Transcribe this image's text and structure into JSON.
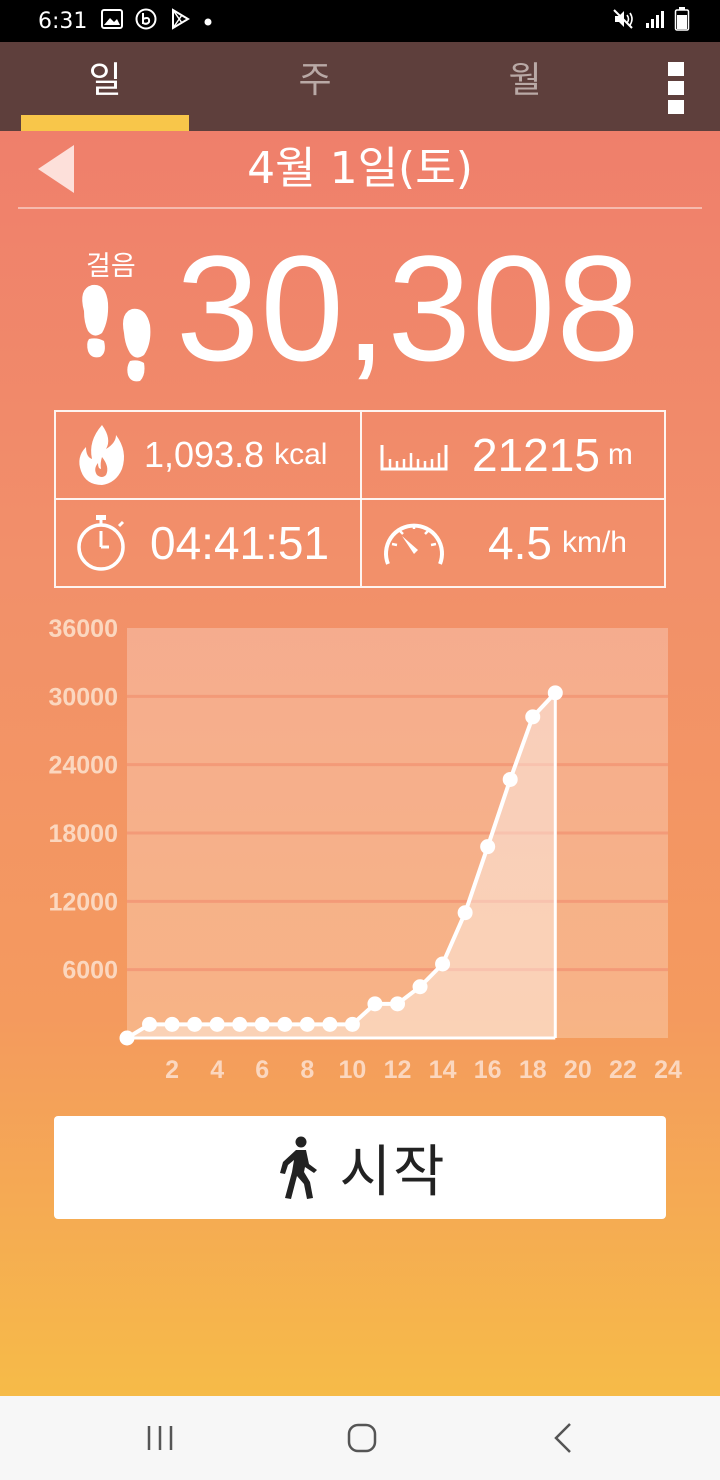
{
  "status_bar": {
    "time": "6:31",
    "icons": [
      "gallery-icon",
      "b-app-icon",
      "play-icon",
      "dot-icon",
      "mute-icon",
      "signal-icon",
      "battery-icon"
    ]
  },
  "tabs": [
    {
      "label": "일",
      "active": true
    },
    {
      "label": "주",
      "active": false
    },
    {
      "label": "월",
      "active": false
    }
  ],
  "date": {
    "title": "4월 1일(토)"
  },
  "steps": {
    "label": "걸음",
    "value": "30,308"
  },
  "stats": {
    "calories": {
      "value": "1,093.8",
      "unit": "kcal"
    },
    "distance": {
      "value": "21215",
      "unit": "m"
    },
    "duration": {
      "value": "04:41:51"
    },
    "speed": {
      "value": "4.5",
      "unit": "km/h"
    }
  },
  "chart_data": {
    "type": "line",
    "x": [
      0,
      1,
      2,
      3,
      4,
      5,
      6,
      7,
      8,
      9,
      10,
      11,
      12,
      13,
      14,
      15,
      16,
      17,
      18,
      19
    ],
    "values": [
      0,
      1200,
      1200,
      1200,
      1200,
      1200,
      1200,
      1200,
      1200,
      1200,
      1200,
      3000,
      3000,
      4500,
      6500,
      11000,
      16800,
      22700,
      28200,
      30308
    ],
    "xticks": [
      2,
      4,
      6,
      8,
      10,
      12,
      14,
      16,
      18,
      20,
      22,
      24
    ],
    "yticks": [
      6000,
      12000,
      18000,
      24000,
      30000,
      36000
    ],
    "xlim": [
      0,
      24
    ],
    "ylim": [
      0,
      36000
    ],
    "grid": true
  },
  "start_button": {
    "label": "시작"
  },
  "colors": {
    "tab_bar": "#5e3f3c",
    "tab_indicator": "#f8c64a",
    "bg_top": "#ef7f6b",
    "bg_bottom": "#f6bb48"
  }
}
